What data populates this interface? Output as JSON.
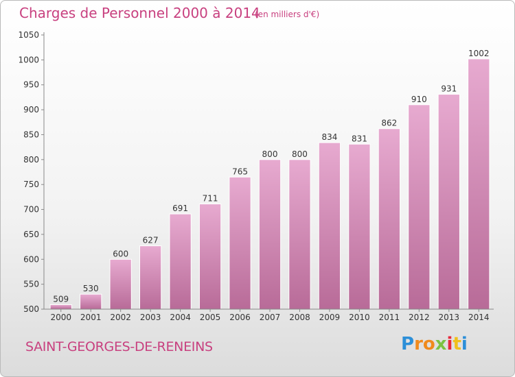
{
  "header": {
    "title": "Charges de Personnel 2000 à 2014",
    "subtitle": "(en milliers d'€)"
  },
  "footer": {
    "commune": "SAINT-GEORGES-DE-RENEINS",
    "logo_letters": [
      "P",
      "r",
      "o",
      "x",
      "i",
      "t",
      "i"
    ],
    "logo_colors": [
      "#2c8fd8",
      "#f08a1c",
      "#f08a1c",
      "#7cc242",
      "#e8283c",
      "#f0c01c",
      "#2c8fd8"
    ]
  },
  "colors": {
    "bar_fill": "#d98bbb",
    "bar_edge": "#ffffff",
    "title": "#c8407f"
  },
  "chart_data": {
    "type": "bar",
    "categories": [
      "2000",
      "2001",
      "2002",
      "2003",
      "2004",
      "2005",
      "2006",
      "2007",
      "2008",
      "2009",
      "2010",
      "2011",
      "2012",
      "2013",
      "2014"
    ],
    "values": [
      509,
      530,
      600,
      627,
      691,
      711,
      765,
      800,
      800,
      834,
      831,
      862,
      910,
      931,
      1002
    ],
    "ylim": [
      500,
      1050
    ],
    "yticks": [
      500,
      550,
      600,
      650,
      700,
      750,
      800,
      850,
      900,
      950,
      1000,
      1050
    ],
    "grid": false
  }
}
